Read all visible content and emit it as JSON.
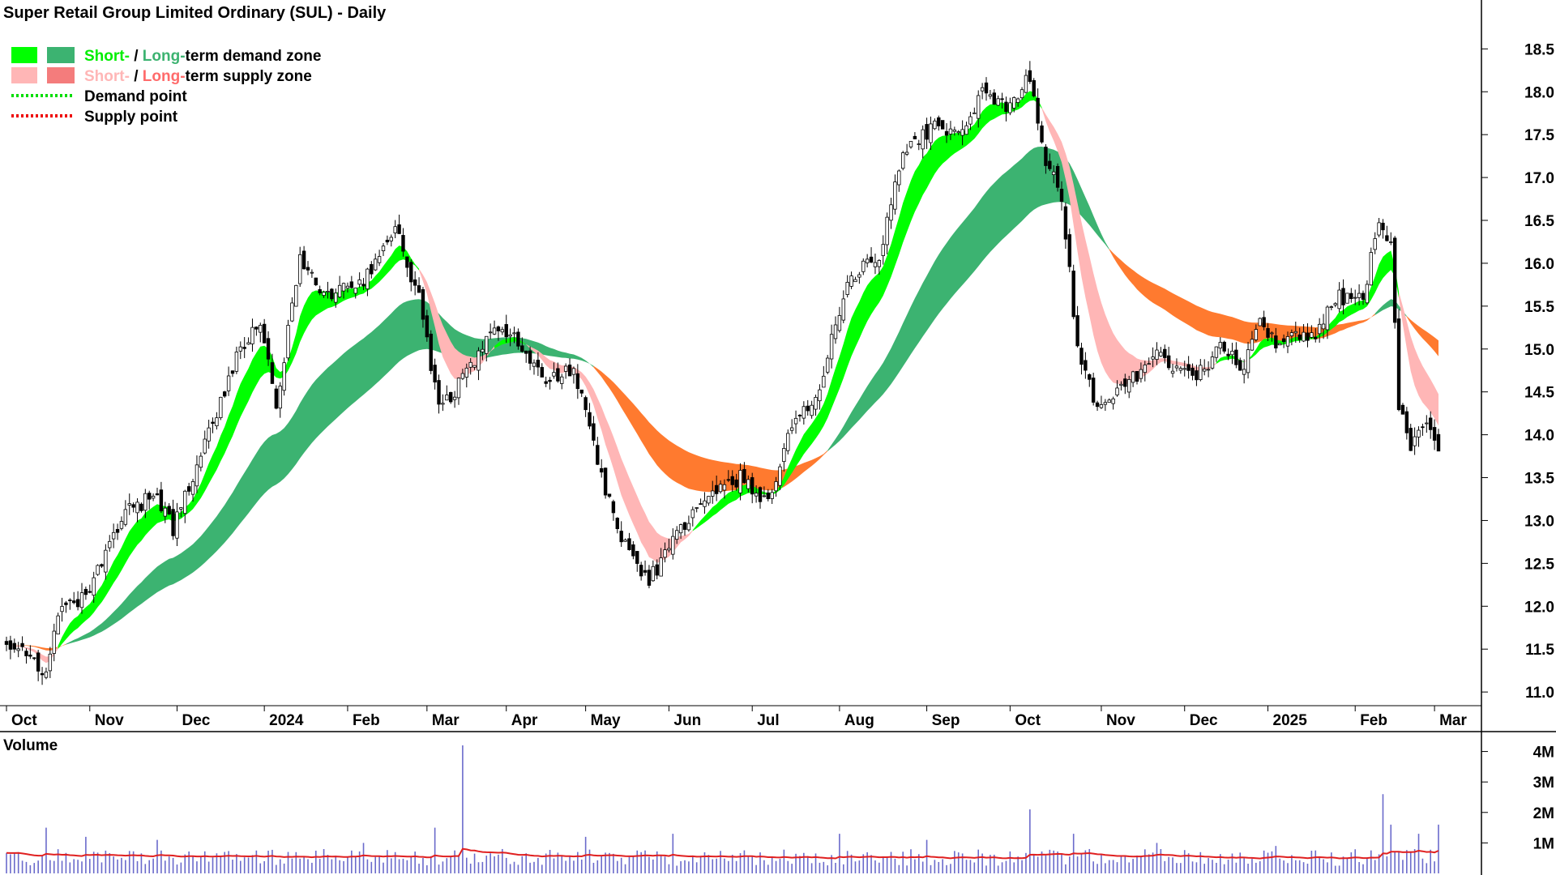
{
  "title": "Super Retail Group Limited Ordinary (SUL) - Daily",
  "legend": [
    {
      "kind": "zone",
      "short_label": "Short-",
      "sep": " / ",
      "long_label": "Long-",
      "rest": "term demand zone",
      "short_color": "#00ff00",
      "long_color": "#3cb371",
      "short_text_color": "#00ee00",
      "long_text_color": "#3cb371"
    },
    {
      "kind": "zone",
      "short_label": "Short-",
      "sep": " / ",
      "long_label": "Long-",
      "rest": "term supply zone",
      "short_color": "#ffb6b6",
      "long_color": "#f47c7c",
      "short_text_color": "#ffb6b6",
      "long_text_color": "#ff6b6b"
    },
    {
      "kind": "point",
      "label": "Demand point",
      "color": "#00dd00"
    },
    {
      "kind": "point",
      "label": "Supply point",
      "color": "#ee0000"
    }
  ],
  "colors": {
    "short_demand": "#00ff00",
    "long_demand": "#3cb371",
    "short_supply": "#ffb6b6",
    "long_supply": "#ff7a2f",
    "candle": "#000000",
    "volume_bar": "#6a6acb",
    "volume_ma": "#e02020",
    "volume_label": "#6a6acb"
  },
  "chart_data": {
    "type": "candlestick",
    "price_axis": {
      "ticks": [
        "18.5",
        "18.0",
        "17.5",
        "17.0",
        "16.5",
        "16.0",
        "15.5",
        "15.0",
        "14.5",
        "14.0",
        "13.5",
        "13.0",
        "12.5",
        "12.0",
        "11.5",
        "11.0"
      ],
      "range": [
        10.85,
        18.9
      ]
    },
    "x_axis": {
      "labels": [
        "Oct",
        "Nov",
        "Dec",
        "2024",
        "Feb",
        "Mar",
        "Apr",
        "May",
        "Jun",
        "Jul",
        "Aug",
        "Sep",
        "Oct",
        "Nov",
        "Dec",
        "2025",
        "Feb",
        "Mar"
      ],
      "index_positions": [
        0,
        21,
        43,
        65,
        86,
        106,
        126,
        146,
        167,
        188,
        210,
        232,
        253,
        276,
        297,
        318,
        340,
        360
      ],
      "total_days": 362
    },
    "price_anchors": [
      [
        0,
        11.6
      ],
      [
        5,
        11.5
      ],
      [
        10,
        11.15
      ],
      [
        13,
        11.9
      ],
      [
        20,
        12.1
      ],
      [
        30,
        13.1
      ],
      [
        38,
        13.3
      ],
      [
        42,
        12.9
      ],
      [
        50,
        13.9
      ],
      [
        58,
        14.9
      ],
      [
        64,
        15.3
      ],
      [
        68,
        14.3
      ],
      [
        74,
        16.1
      ],
      [
        80,
        15.6
      ],
      [
        90,
        15.8
      ],
      [
        98,
        16.4
      ],
      [
        104,
        15.6
      ],
      [
        109,
        14.3
      ],
      [
        116,
        14.7
      ],
      [
        124,
        15.3
      ],
      [
        130,
        15.0
      ],
      [
        136,
        14.6
      ],
      [
        143,
        14.8
      ],
      [
        150,
        13.5
      ],
      [
        156,
        12.7
      ],
      [
        162,
        12.3
      ],
      [
        170,
        12.9
      ],
      [
        178,
        13.3
      ],
      [
        185,
        13.5
      ],
      [
        192,
        13.2
      ],
      [
        198,
        14.1
      ],
      [
        204,
        14.4
      ],
      [
        212,
        15.8
      ],
      [
        220,
        16.1
      ],
      [
        226,
        17.3
      ],
      [
        234,
        17.6
      ],
      [
        240,
        17.5
      ],
      [
        246,
        18.0
      ],
      [
        252,
        17.8
      ],
      [
        258,
        18.2
      ],
      [
        262,
        17.2
      ],
      [
        266,
        16.8
      ],
      [
        270,
        15.0
      ],
      [
        275,
        14.3
      ],
      [
        280,
        14.5
      ],
      [
        290,
        14.9
      ],
      [
        300,
        14.7
      ],
      [
        306,
        15.0
      ],
      [
        312,
        14.8
      ],
      [
        316,
        15.3
      ],
      [
        320,
        15.1
      ],
      [
        330,
        15.2
      ],
      [
        336,
        15.6
      ],
      [
        342,
        15.6
      ],
      [
        346,
        16.5
      ],
      [
        349,
        16.2
      ],
      [
        351,
        14.3
      ],
      [
        354,
        13.9
      ],
      [
        358,
        14.2
      ],
      [
        361,
        13.8
      ]
    ],
    "volume_axis": {
      "ticks": [
        "4M",
        "3M",
        "2M",
        "1M"
      ],
      "range": [
        0,
        4.6
      ]
    },
    "volume_label": "Volume",
    "volume_spikes": [
      [
        10,
        1.5
      ],
      [
        20,
        1.2
      ],
      [
        38,
        1.1
      ],
      [
        62,
        0.6
      ],
      [
        90,
        1.0
      ],
      [
        108,
        1.5
      ],
      [
        115,
        4.2
      ],
      [
        146,
        1.2
      ],
      [
        168,
        1.3
      ],
      [
        210,
        1.3
      ],
      [
        232,
        1.1
      ],
      [
        258,
        2.1
      ],
      [
        269,
        1.3
      ],
      [
        290,
        1.0
      ],
      [
        320,
        0.9
      ],
      [
        347,
        2.6
      ],
      [
        349,
        1.6
      ],
      [
        356,
        1.3
      ],
      [
        361,
        1.6
      ]
    ]
  }
}
